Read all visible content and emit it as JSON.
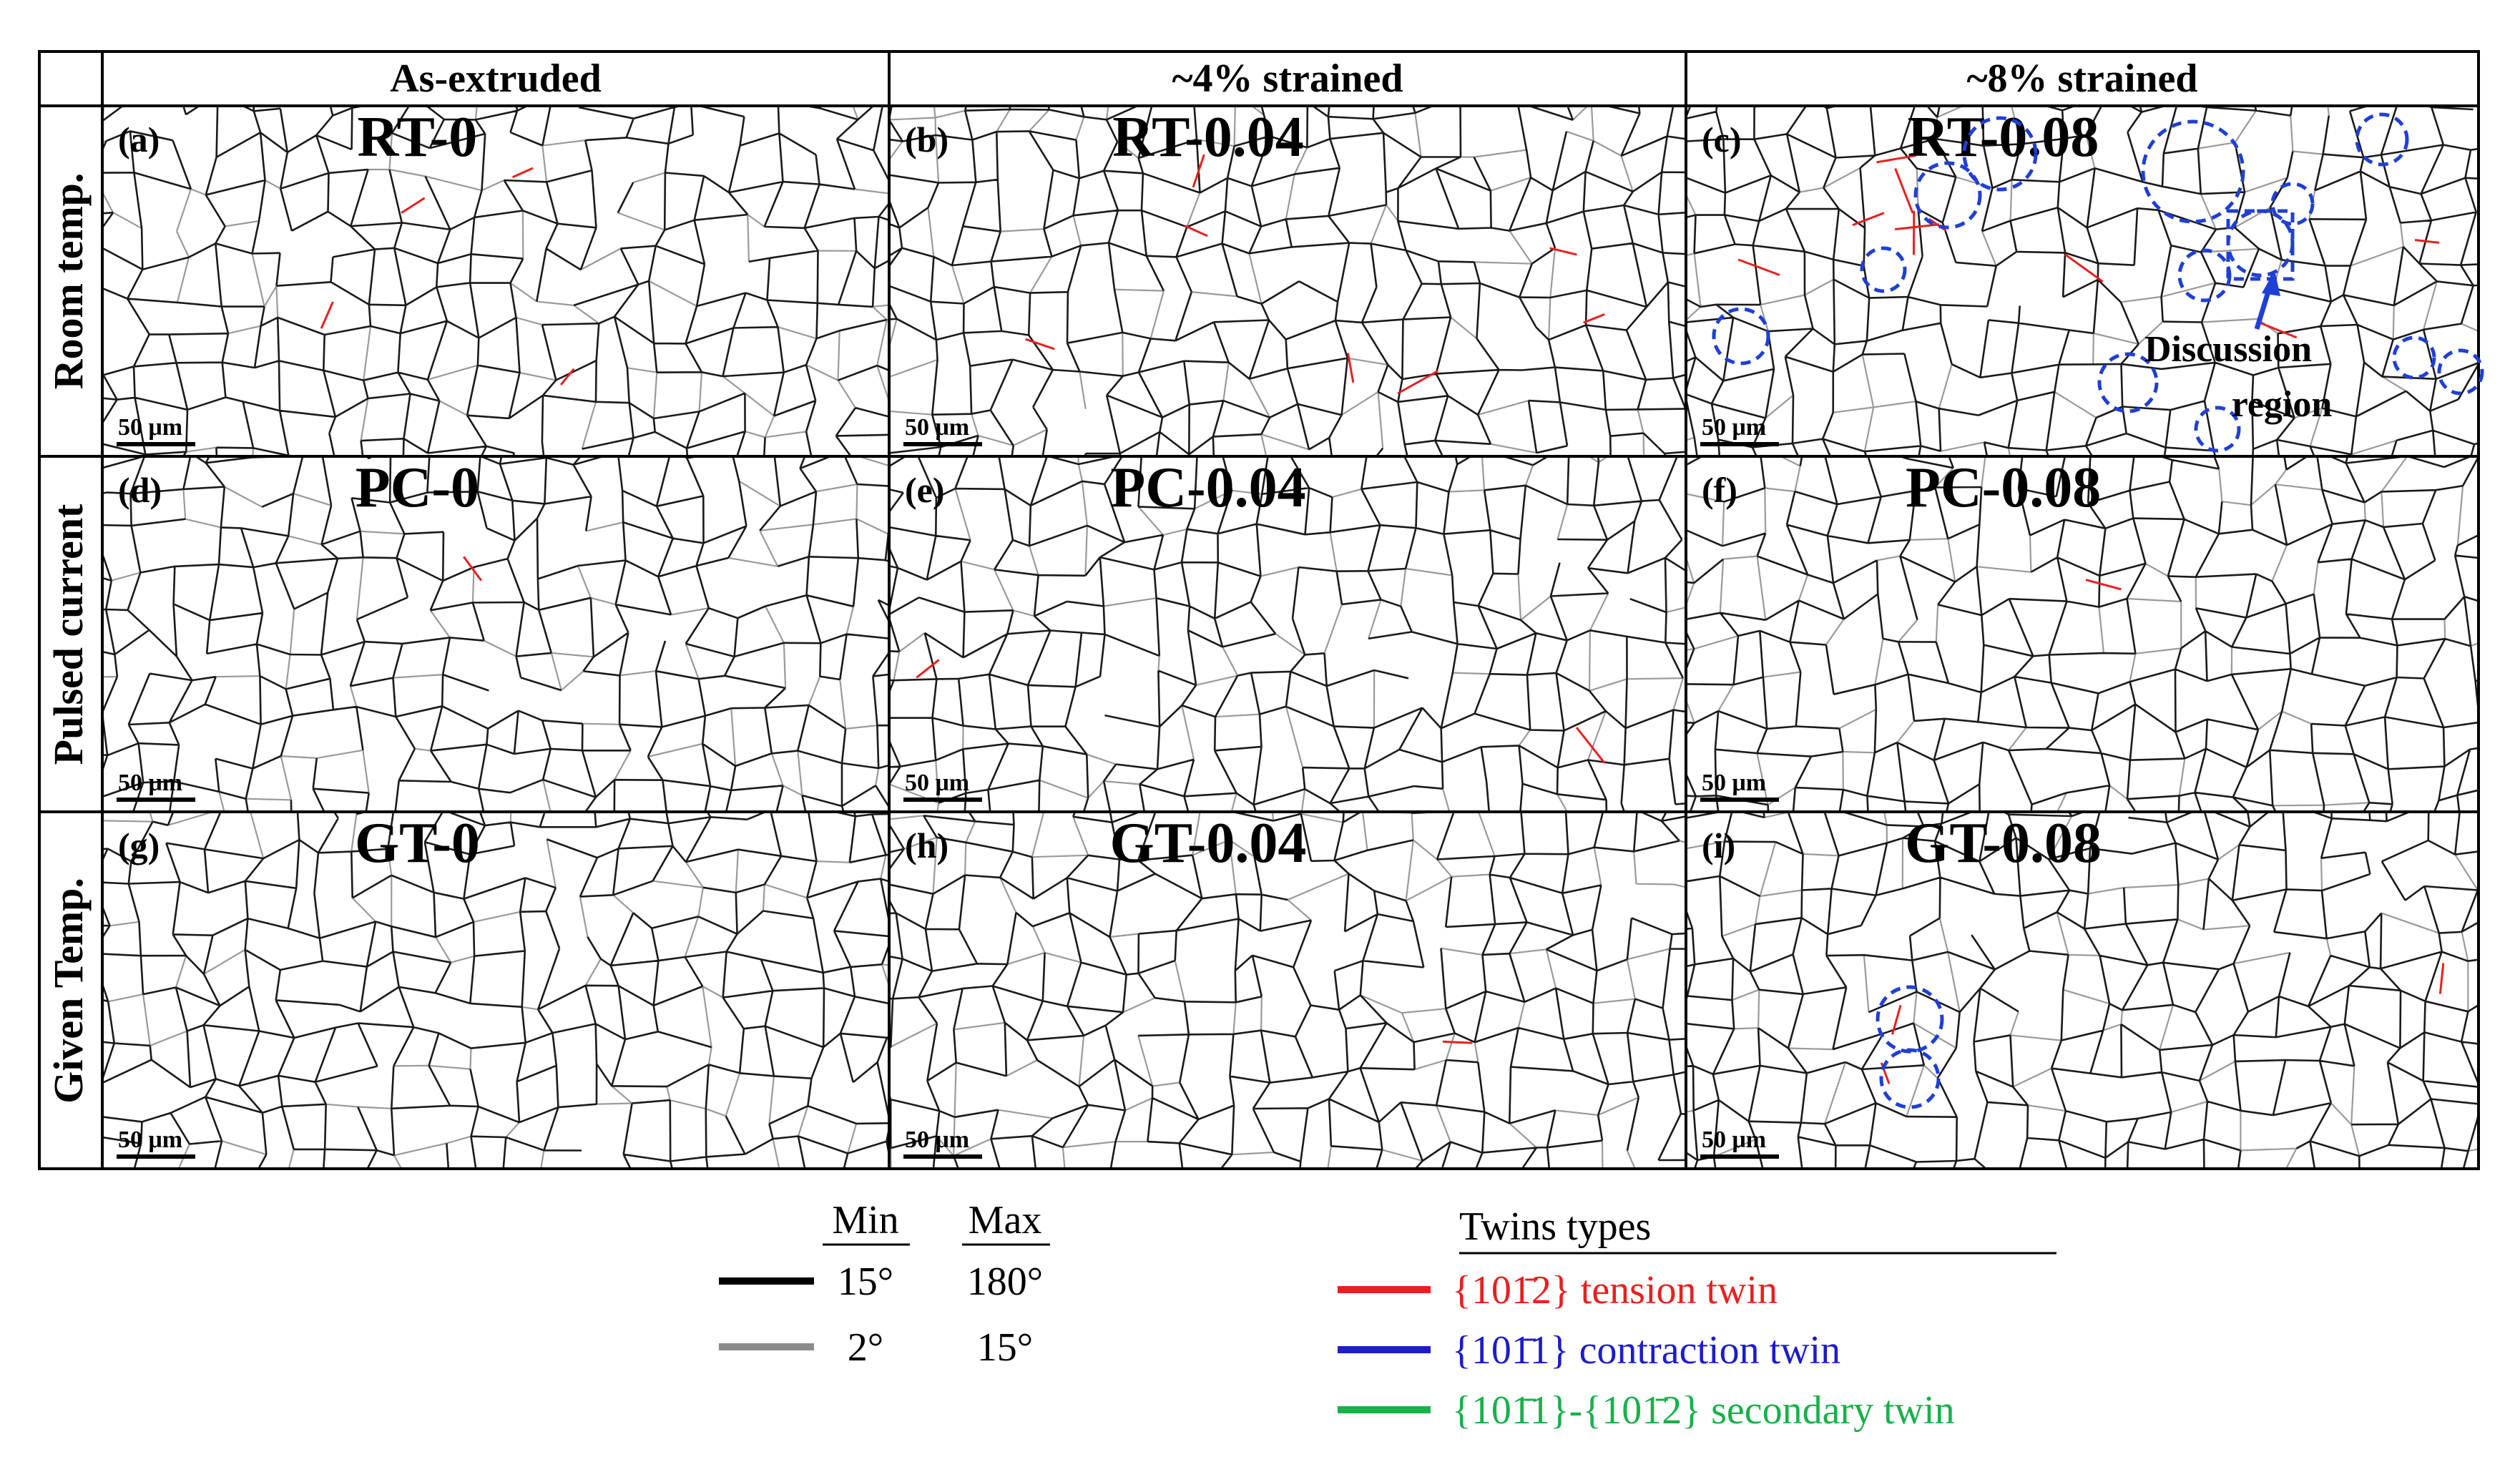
{
  "columns": [
    "As-extruded",
    "~4% strained",
    "~8% strained"
  ],
  "rows": [
    "Room temp.",
    "Pulsed current",
    "Given Temp."
  ],
  "panels": [
    {
      "label": "(a)",
      "title": "RT-0",
      "scale": "50 μm"
    },
    {
      "label": "(b)",
      "title": "RT-0.04",
      "scale": "50 μm"
    },
    {
      "label": "(c)",
      "title": "RT-0.08",
      "scale": "50 μm"
    },
    {
      "label": "(d)",
      "title": "PC-0",
      "scale": "50 μm"
    },
    {
      "label": "(e)",
      "title": "PC-0.04",
      "scale": "50 μm"
    },
    {
      "label": "(f)",
      "title": "PC-0.08",
      "scale": "50 μm"
    },
    {
      "label": "(g)",
      "title": "GT-0",
      "scale": "50 μm"
    },
    {
      "label": "(h)",
      "title": "GT-0.04",
      "scale": "50 μm"
    },
    {
      "label": "(i)",
      "title": "GT-0.08",
      "scale": "50 μm"
    }
  ],
  "annotation": {
    "line1": "Discussion",
    "line2": "region"
  },
  "legend": {
    "min_header": "Min",
    "max_header": "Max",
    "rows": [
      {
        "min": "15°",
        "max": "180°",
        "color": "#000000"
      },
      {
        "min": "2°",
        "max": "15°",
        "color": "#8c8c8c"
      }
    ],
    "twins_header": "Twins types",
    "twins": [
      {
        "text": "{101̄2} tension twin",
        "color": "#e8201f"
      },
      {
        "text": "{101̄1} contraction twin",
        "color": "#1c1ccc"
      },
      {
        "text": "{101̄1}-{101̄2} secondary twin",
        "color": "#19b04a"
      }
    ]
  },
  "colors": {
    "grain_boundary": "#1a1a1a",
    "low_angle": "#9a9a9a",
    "tension_twin": "#e8201f",
    "circle": "#1f3fd6"
  }
}
